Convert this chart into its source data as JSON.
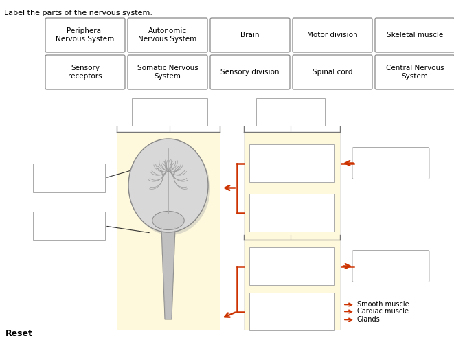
{
  "title": "Label the parts of the nervous system.",
  "bg_color": "#ffffff",
  "label_boxes_row1": [
    {
      "text": "Peripheral\nNervous System"
    },
    {
      "text": "Autonomic\nNervous System"
    },
    {
      "text": "Brain"
    },
    {
      "text": "Motor division"
    },
    {
      "text": "Skeletal muscle"
    }
  ],
  "label_boxes_row2": [
    {
      "text": "Sensory\nreceptors"
    },
    {
      "text": "Somatic Nervous\nSystem"
    },
    {
      "text": "Sensory division"
    },
    {
      "text": "Spinal cord"
    },
    {
      "text": "Central Nervous\nSystem"
    }
  ],
  "reset_text": "Reset",
  "arrow_color": "#cc3300",
  "panel_color": "#fef9dc"
}
